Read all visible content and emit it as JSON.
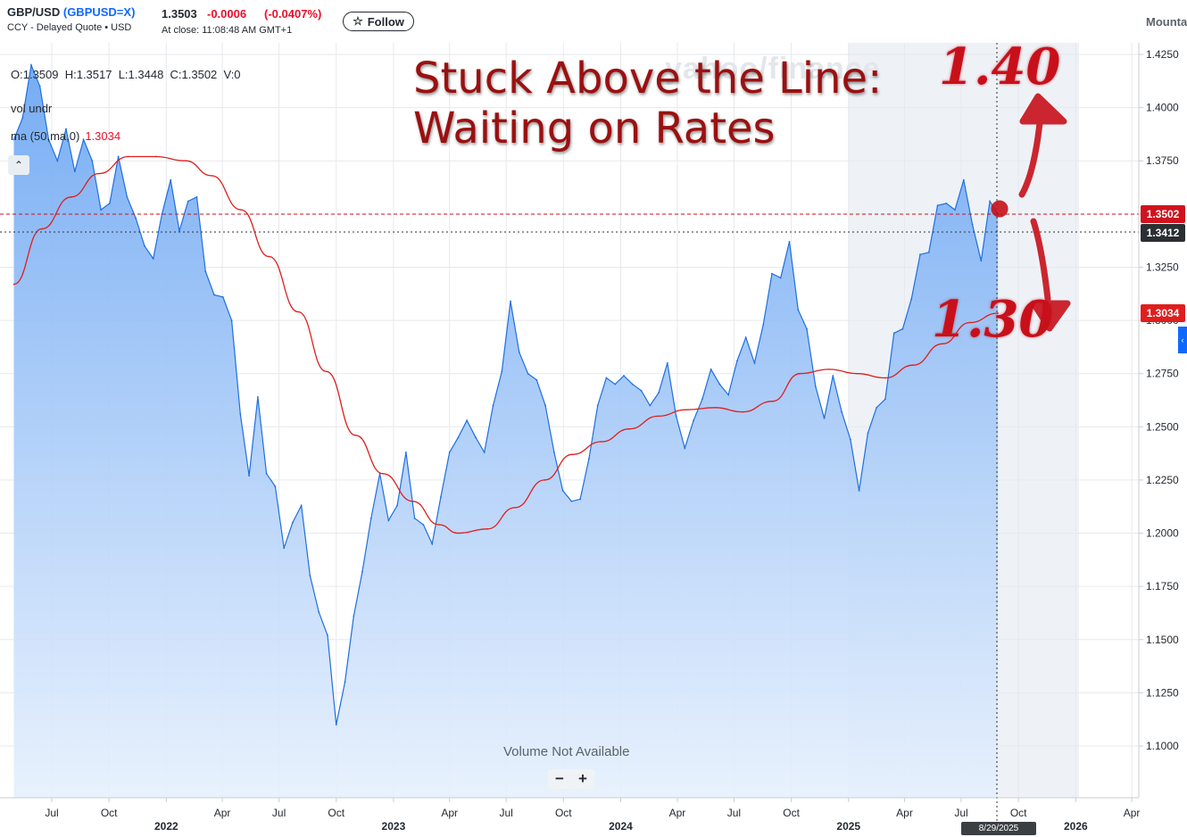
{
  "header": {
    "symbol_name": "GBP/USD",
    "ticker": "(GBPUSD=X)",
    "subtitle": "CCY - Delayed Quote • USD",
    "price": "1.3503",
    "change": "-0.0006",
    "change_pct": "(-0.0407%)",
    "at_close": "At close: 11:08:48 AM GMT+1",
    "follow_label": "Follow",
    "follow_icon": "star-icon",
    "timezone": "Mounta"
  },
  "legend": {
    "ohlc": "O:1.3509  H:1.3517  L:1.3448  C:1.3502  V:0",
    "indicator_1": "vol undr",
    "indicator_2_label": "ma (50,ma,0)",
    "indicator_2_value": "1.3034",
    "collapse_icon": "chevron-up-icon"
  },
  "annotations": {
    "title": "Stuck Above the Line:\nWaiting on Rates",
    "upper_target": "1.40",
    "lower_target": "1.30"
  },
  "watermark": "yahoo/finance",
  "volume_note": "Volume Not Available",
  "zoom": {
    "minus": "−",
    "plus": "+"
  },
  "price_tags": {
    "last": "1.3502",
    "crosshair": "1.3412",
    "ma": "1.3034"
  },
  "crosshair_date": "8/29/2025",
  "colors": {
    "line": "#1f6fe0",
    "ma": "#e01e1e",
    "area_top": "#7fb2f5",
    "tag_red": "#d0121e",
    "tag_dark": "#2b2f33"
  },
  "chart_data": {
    "type": "area",
    "title": "",
    "xlabel": "",
    "ylabel": "",
    "ylim": [
      1.08,
      1.43
    ],
    "y_ticks": [
      "1.4250",
      "1.4000",
      "1.3750",
      "1.3500",
      "1.3250",
      "1.3000",
      "1.2750",
      "1.2500",
      "1.2250",
      "1.2000",
      "1.1750",
      "1.1500",
      "1.1250",
      "1.1000"
    ],
    "x_ticks": [
      {
        "t": "2021-07-01",
        "label": "Jul",
        "bold": false
      },
      {
        "t": "2021-10-01",
        "label": "Oct",
        "bold": false
      },
      {
        "t": "2022-01-01",
        "label": "2022",
        "bold": true
      },
      {
        "t": "2022-04-01",
        "label": "Apr",
        "bold": false
      },
      {
        "t": "2022-07-01",
        "label": "Jul",
        "bold": false
      },
      {
        "t": "2022-10-01",
        "label": "Oct",
        "bold": false
      },
      {
        "t": "2023-01-01",
        "label": "2023",
        "bold": true
      },
      {
        "t": "2023-04-01",
        "label": "Apr",
        "bold": false
      },
      {
        "t": "2023-07-01",
        "label": "Jul",
        "bold": false
      },
      {
        "t": "2023-10-01",
        "label": "Oct",
        "bold": false
      },
      {
        "t": "2024-01-01",
        "label": "2024",
        "bold": true
      },
      {
        "t": "2024-04-01",
        "label": "Apr",
        "bold": false
      },
      {
        "t": "2024-07-01",
        "label": "Jul",
        "bold": false
      },
      {
        "t": "2024-10-01",
        "label": "Oct",
        "bold": false
      },
      {
        "t": "2025-01-01",
        "label": "2025",
        "bold": true
      },
      {
        "t": "2025-04-01",
        "label": "Apr",
        "bold": false
      },
      {
        "t": "2025-07-01",
        "label": "Jul",
        "bold": false
      },
      {
        "t": "2025-10-01",
        "label": "Oct",
        "bold": false
      },
      {
        "t": "2026-01-01",
        "label": "2026",
        "bold": true
      },
      {
        "t": "2026-04-01",
        "label": "Apr",
        "bold": false
      }
    ],
    "grid": true,
    "legend_position": "top-left",
    "series": [
      {
        "name": "GBP/USD",
        "kind": "area",
        "points": [
          [
            "2021-05-01",
            1.385
          ],
          [
            "2021-05-15",
            1.395
          ],
          [
            "2021-05-29",
            1.42
          ],
          [
            "2021-06-12",
            1.41
          ],
          [
            "2021-06-26",
            1.385
          ],
          [
            "2021-07-10",
            1.375
          ],
          [
            "2021-07-24",
            1.39
          ],
          [
            "2021-08-07",
            1.37
          ],
          [
            "2021-08-21",
            1.385
          ],
          [
            "2021-09-04",
            1.375
          ],
          [
            "2021-09-18",
            1.352
          ],
          [
            "2021-10-02",
            1.355
          ],
          [
            "2021-10-16",
            1.377
          ],
          [
            "2021-10-30",
            1.358
          ],
          [
            "2021-11-13",
            1.348
          ],
          [
            "2021-11-27",
            1.335
          ],
          [
            "2021-12-11",
            1.329
          ],
          [
            "2021-12-25",
            1.35
          ],
          [
            "2022-01-08",
            1.366
          ],
          [
            "2022-01-22",
            1.342
          ],
          [
            "2022-02-05",
            1.356
          ],
          [
            "2022-02-19",
            1.358
          ],
          [
            "2022-03-05",
            1.323
          ],
          [
            "2022-03-19",
            1.312
          ],
          [
            "2022-04-02",
            1.311
          ],
          [
            "2022-04-16",
            1.3
          ],
          [
            "2022-04-30",
            1.256
          ],
          [
            "2022-05-14",
            1.227
          ],
          [
            "2022-05-28",
            1.264
          ],
          [
            "2022-06-11",
            1.228
          ],
          [
            "2022-06-25",
            1.222
          ],
          [
            "2022-07-09",
            1.193
          ],
          [
            "2022-07-23",
            1.205
          ],
          [
            "2022-08-06",
            1.213
          ],
          [
            "2022-08-20",
            1.18
          ],
          [
            "2022-09-03",
            1.163
          ],
          [
            "2022-09-17",
            1.152
          ],
          [
            "2022-10-01",
            1.11
          ],
          [
            "2022-10-15",
            1.13
          ],
          [
            "2022-10-29",
            1.161
          ],
          [
            "2022-11-12",
            1.182
          ],
          [
            "2022-11-26",
            1.207
          ],
          [
            "2022-12-10",
            1.228
          ],
          [
            "2022-12-24",
            1.206
          ],
          [
            "2023-01-07",
            1.213
          ],
          [
            "2023-01-21",
            1.238
          ],
          [
            "2023-02-04",
            1.207
          ],
          [
            "2023-02-18",
            1.204
          ],
          [
            "2023-03-04",
            1.195
          ],
          [
            "2023-03-18",
            1.217
          ],
          [
            "2023-04-01",
            1.238
          ],
          [
            "2023-04-15",
            1.245
          ],
          [
            "2023-04-29",
            1.253
          ],
          [
            "2023-05-13",
            1.245
          ],
          [
            "2023-05-27",
            1.238
          ],
          [
            "2023-06-10",
            1.26
          ],
          [
            "2023-06-24",
            1.276
          ],
          [
            "2023-07-08",
            1.309
          ],
          [
            "2023-07-22",
            1.285
          ],
          [
            "2023-08-05",
            1.275
          ],
          [
            "2023-08-19",
            1.272
          ],
          [
            "2023-09-02",
            1.26
          ],
          [
            "2023-09-16",
            1.238
          ],
          [
            "2023-09-30",
            1.22
          ],
          [
            "2023-10-14",
            1.215
          ],
          [
            "2023-10-28",
            1.216
          ],
          [
            "2023-11-11",
            1.235
          ],
          [
            "2023-11-25",
            1.26
          ],
          [
            "2023-12-09",
            1.273
          ],
          [
            "2023-12-23",
            1.27
          ],
          [
            "2024-01-06",
            1.274
          ],
          [
            "2024-01-20",
            1.27
          ],
          [
            "2024-02-03",
            1.267
          ],
          [
            "2024-02-17",
            1.26
          ],
          [
            "2024-03-02",
            1.266
          ],
          [
            "2024-03-16",
            1.28
          ],
          [
            "2024-03-30",
            1.255
          ],
          [
            "2024-04-13",
            1.24
          ],
          [
            "2024-04-27",
            1.253
          ],
          [
            "2024-05-11",
            1.263
          ],
          [
            "2024-05-25",
            1.277
          ],
          [
            "2024-06-08",
            1.27
          ],
          [
            "2024-06-22",
            1.265
          ],
          [
            "2024-07-06",
            1.281
          ],
          [
            "2024-07-20",
            1.292
          ],
          [
            "2024-08-03",
            1.28
          ],
          [
            "2024-08-17",
            1.298
          ],
          [
            "2024-08-31",
            1.322
          ],
          [
            "2024-09-14",
            1.32
          ],
          [
            "2024-09-28",
            1.337
          ],
          [
            "2024-10-12",
            1.305
          ],
          [
            "2024-10-26",
            1.296
          ],
          [
            "2024-11-09",
            1.269
          ],
          [
            "2024-11-23",
            1.254
          ],
          [
            "2024-12-07",
            1.274
          ],
          [
            "2024-12-21",
            1.257
          ],
          [
            "2025-01-04",
            1.244
          ],
          [
            "2025-01-18",
            1.22
          ],
          [
            "2025-02-01",
            1.247
          ],
          [
            "2025-02-15",
            1.259
          ],
          [
            "2025-03-01",
            1.263
          ],
          [
            "2025-03-15",
            1.294
          ],
          [
            "2025-03-29",
            1.296
          ],
          [
            "2025-04-12",
            1.31
          ],
          [
            "2025-04-26",
            1.331
          ],
          [
            "2025-05-10",
            1.332
          ],
          [
            "2025-05-24",
            1.354
          ],
          [
            "2025-06-07",
            1.355
          ],
          [
            "2025-06-21",
            1.352
          ],
          [
            "2025-07-05",
            1.366
          ],
          [
            "2025-07-19",
            1.345
          ],
          [
            "2025-08-02",
            1.328
          ],
          [
            "2025-08-16",
            1.356
          ],
          [
            "2025-08-29",
            1.35
          ]
        ]
      },
      {
        "name": "ma (50,ma,0)",
        "kind": "line",
        "points": [
          [
            "2021-05-01",
            1.317
          ],
          [
            "2021-06-15",
            1.343
          ],
          [
            "2021-08-01",
            1.358
          ],
          [
            "2021-09-15",
            1.369
          ],
          [
            "2021-11-01",
            1.377
          ],
          [
            "2021-12-15",
            1.377
          ],
          [
            "2022-02-01",
            1.375
          ],
          [
            "2022-03-15",
            1.368
          ],
          [
            "2022-05-01",
            1.352
          ],
          [
            "2022-06-15",
            1.33
          ],
          [
            "2022-08-01",
            1.304
          ],
          [
            "2022-09-15",
            1.276
          ],
          [
            "2022-11-01",
            1.246
          ],
          [
            "2022-12-15",
            1.228
          ],
          [
            "2023-02-01",
            1.215
          ],
          [
            "2023-03-15",
            1.204
          ],
          [
            "2023-04-15",
            1.2
          ],
          [
            "2023-06-01",
            1.202
          ],
          [
            "2023-07-15",
            1.212
          ],
          [
            "2023-09-01",
            1.225
          ],
          [
            "2023-10-15",
            1.237
          ],
          [
            "2023-12-01",
            1.243
          ],
          [
            "2024-01-15",
            1.249
          ],
          [
            "2024-03-01",
            1.255
          ],
          [
            "2024-04-15",
            1.258
          ],
          [
            "2024-06-01",
            1.259
          ],
          [
            "2024-07-15",
            1.257
          ],
          [
            "2024-09-01",
            1.262
          ],
          [
            "2024-10-15",
            1.275
          ],
          [
            "2024-12-01",
            1.277
          ],
          [
            "2025-01-15",
            1.275
          ],
          [
            "2025-03-01",
            1.273
          ],
          [
            "2025-04-15",
            1.279
          ],
          [
            "2025-06-01",
            1.289
          ],
          [
            "2025-07-15",
            1.299
          ],
          [
            "2025-08-29",
            1.3034
          ]
        ]
      }
    ]
  }
}
